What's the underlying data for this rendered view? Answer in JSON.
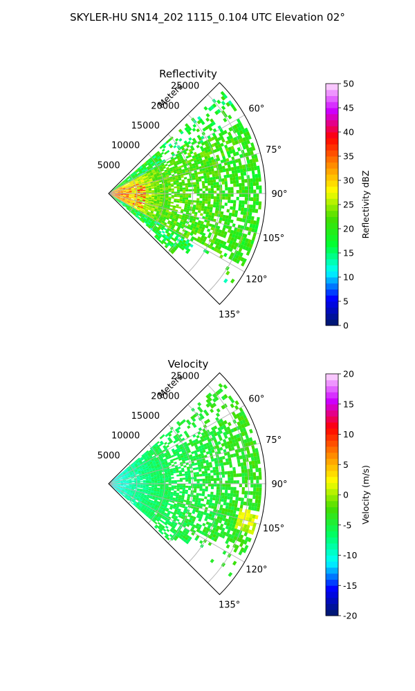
{
  "figure": {
    "title": "SKYLER-HU  SN14_202  1115_0.104 UTC Elevation 02°"
  },
  "chart_data": [
    {
      "type": "heatmap",
      "projection": "polar",
      "title": "Reflectivity",
      "radial_axis_label": "Meters",
      "radial_ticks": [
        "5000",
        "10000",
        "15000",
        "20000",
        "25000"
      ],
      "radial_values": [
        5000,
        10000,
        15000,
        20000,
        25000
      ],
      "rlim": [
        0,
        28000
      ],
      "azimuth_ticks": [
        "60°",
        "75°",
        "90°",
        "105°",
        "120°",
        "135°"
      ],
      "azimuth_values": [
        60,
        75,
        90,
        105,
        120,
        135
      ],
      "azimuth_range": [
        45,
        135
      ],
      "grid": true,
      "colorbar": {
        "label": "Reflectivity dBZ",
        "min": 0,
        "max": 50,
        "ticks": [
          "0",
          "5",
          "10",
          "15",
          "20",
          "25",
          "30",
          "35",
          "40",
          "45",
          "50"
        ],
        "tick_values": [
          0,
          5,
          10,
          15,
          20,
          25,
          30,
          35,
          40,
          45,
          50
        ],
        "stops": [
          "#001a66",
          "#0000ff",
          "#00ffff",
          "#00ff33",
          "#44dd00",
          "#ffff00",
          "#ff8800",
          "#ff0000",
          "#cc00ff",
          "#ffe0ff"
        ]
      },
      "typical_values": {
        "near_radar": 33,
        "core_max": 38,
        "mid_range": 22,
        "far_range": 20,
        "edges": 14
      }
    },
    {
      "type": "heatmap",
      "projection": "polar",
      "title": "Velocity",
      "radial_axis_label": "Meters",
      "radial_ticks": [
        "5000",
        "10000",
        "15000",
        "20000",
        "25000"
      ],
      "radial_values": [
        5000,
        10000,
        15000,
        20000,
        25000
      ],
      "rlim": [
        0,
        28000
      ],
      "azimuth_ticks": [
        "60°",
        "75°",
        "90°",
        "105°",
        "120°",
        "135°"
      ],
      "azimuth_values": [
        60,
        75,
        90,
        105,
        120,
        135
      ],
      "azimuth_range": [
        45,
        135
      ],
      "grid": true,
      "colorbar": {
        "label": "Velocity (m/s)",
        "min": -20,
        "max": 20,
        "ticks": [
          "-20",
          "-15",
          "-10",
          "-5",
          "0",
          "5",
          "10",
          "15",
          "20"
        ],
        "tick_values": [
          -20,
          -15,
          -10,
          -5,
          0,
          5,
          10,
          15,
          20
        ],
        "stops": [
          "#001a66",
          "#0000ff",
          "#00ffff",
          "#00ff66",
          "#44dd00",
          "#ffff00",
          "#ff8800",
          "#ff0000",
          "#cc00ff",
          "#ffe0ff"
        ]
      },
      "typical_values": {
        "near_radar": -11,
        "mid_range": -6,
        "far_range": -3,
        "edges": 0
      }
    }
  ]
}
